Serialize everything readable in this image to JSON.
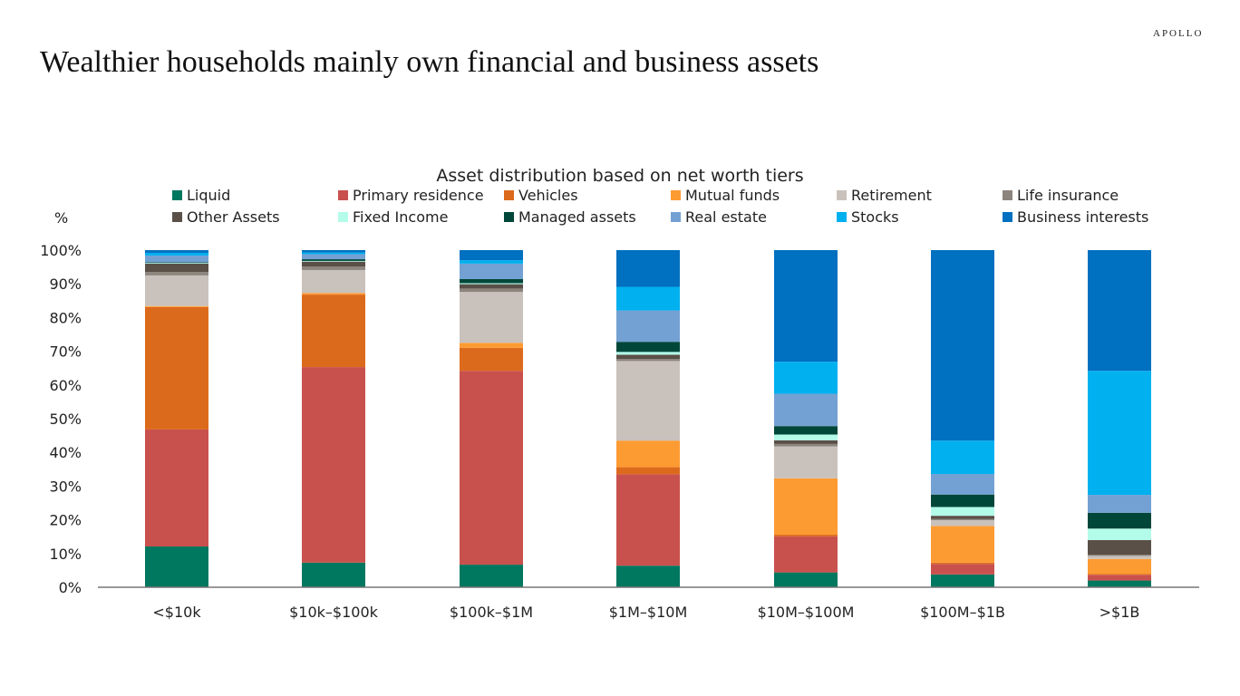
{
  "header": {
    "title": "Wealthier households mainly own financial and business assets",
    "logo": "APOLLO"
  },
  "chart_data": {
    "type": "bar",
    "stacked": true,
    "title": "Asset distribution based on net worth tiers",
    "ylabel": "%",
    "xlabel": "",
    "ylim": [
      0,
      100
    ],
    "yticks": [
      "0%",
      "10%",
      "20%",
      "30%",
      "40%",
      "50%",
      "60%",
      "70%",
      "80%",
      "90%",
      "100%"
    ],
    "grid": false,
    "legend_position": "top",
    "categories": [
      "<$10k",
      "$10k–$100k",
      "$100k–$1M",
      "$1M–$10M",
      "$10M–$100M",
      "$100M–$1B",
      ">$1B"
    ],
    "series": [
      {
        "name": "Liquid",
        "color": "#00775F",
        "values": [
          12.1,
          7.3,
          6.7,
          6.4,
          4.4,
          3.8,
          2.0
        ]
      },
      {
        "name": "Primary residence",
        "color": "#C9514D",
        "values": [
          34.7,
          58.0,
          57.5,
          27.1,
          10.7,
          3.1,
          1.7
        ]
      },
      {
        "name": "Vehicles",
        "color": "#DC6A1C",
        "values": [
          36.3,
          21.5,
          6.8,
          2.1,
          0.5,
          0.4,
          0.2
        ]
      },
      {
        "name": "Mutual funds",
        "color": "#FD9B33",
        "values": [
          0.3,
          0.5,
          1.5,
          7.9,
          16.7,
          10.9,
          4.5
        ]
      },
      {
        "name": "Retirement",
        "color": "#C9C1BB",
        "values": [
          9.1,
          6.8,
          15.1,
          23.6,
          9.5,
          1.7,
          0.9
        ]
      },
      {
        "name": "Life insurance",
        "color": "#8C857D",
        "values": [
          1.0,
          1.0,
          1.0,
          0.6,
          0.7,
          0.4,
          0.3
        ]
      },
      {
        "name": "Other Assets",
        "color": "#5A5048",
        "values": [
          2.5,
          1.5,
          1.3,
          1.3,
          1.1,
          0.9,
          4.4
        ]
      },
      {
        "name": "Fixed Income",
        "color": "#B3FCEA",
        "values": [
          0.2,
          0.2,
          0.3,
          0.8,
          1.7,
          2.6,
          3.4
        ]
      },
      {
        "name": "Managed assets",
        "color": "#00473A",
        "values": [
          0.2,
          0.5,
          1.2,
          3.0,
          2.5,
          3.7,
          4.7
        ]
      },
      {
        "name": "Real estate",
        "color": "#74A1D3",
        "values": [
          2.0,
          1.5,
          4.6,
          9.3,
          9.6,
          6.1,
          5.3
        ]
      },
      {
        "name": "Stocks",
        "color": "#00B0EF",
        "values": [
          0.8,
          0.5,
          1.0,
          7.0,
          9.5,
          9.9,
          36.8
        ]
      },
      {
        "name": "Business interests",
        "color": "#0070C0",
        "values": [
          0.8,
          0.7,
          3.0,
          10.9,
          33.1,
          56.5,
          35.8
        ]
      }
    ]
  }
}
